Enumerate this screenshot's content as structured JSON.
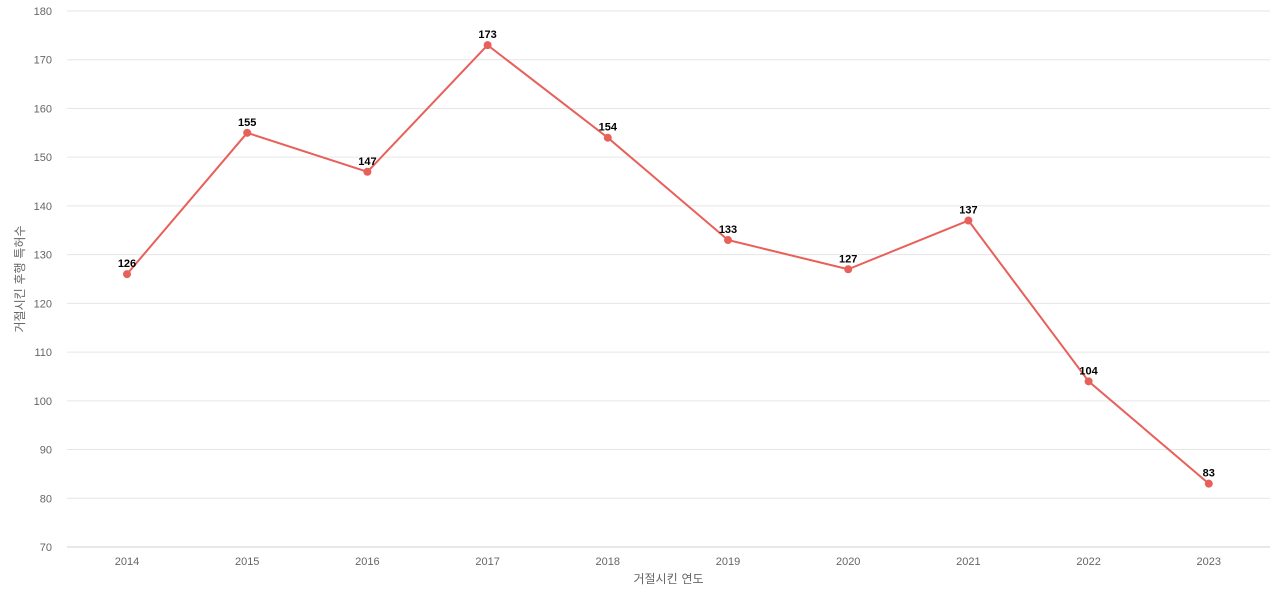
{
  "chart_data": {
    "type": "line",
    "xlabel": "거절시킨 연도",
    "ylabel": "거절시킨 후행 특허수",
    "ylim": [
      70,
      180
    ],
    "yticks": [
      70,
      80,
      90,
      100,
      110,
      120,
      130,
      140,
      150,
      160,
      170,
      180
    ],
    "categories": [
      "2014",
      "2015",
      "2016",
      "2017",
      "2018",
      "2019",
      "2020",
      "2021",
      "2022",
      "2023"
    ],
    "series": [
      {
        "values": [
          126,
          155,
          147,
          173,
          154,
          133,
          127,
          137,
          104,
          83
        ],
        "color": "#e8605a"
      }
    ],
    "grid": true,
    "data_labels": true
  }
}
